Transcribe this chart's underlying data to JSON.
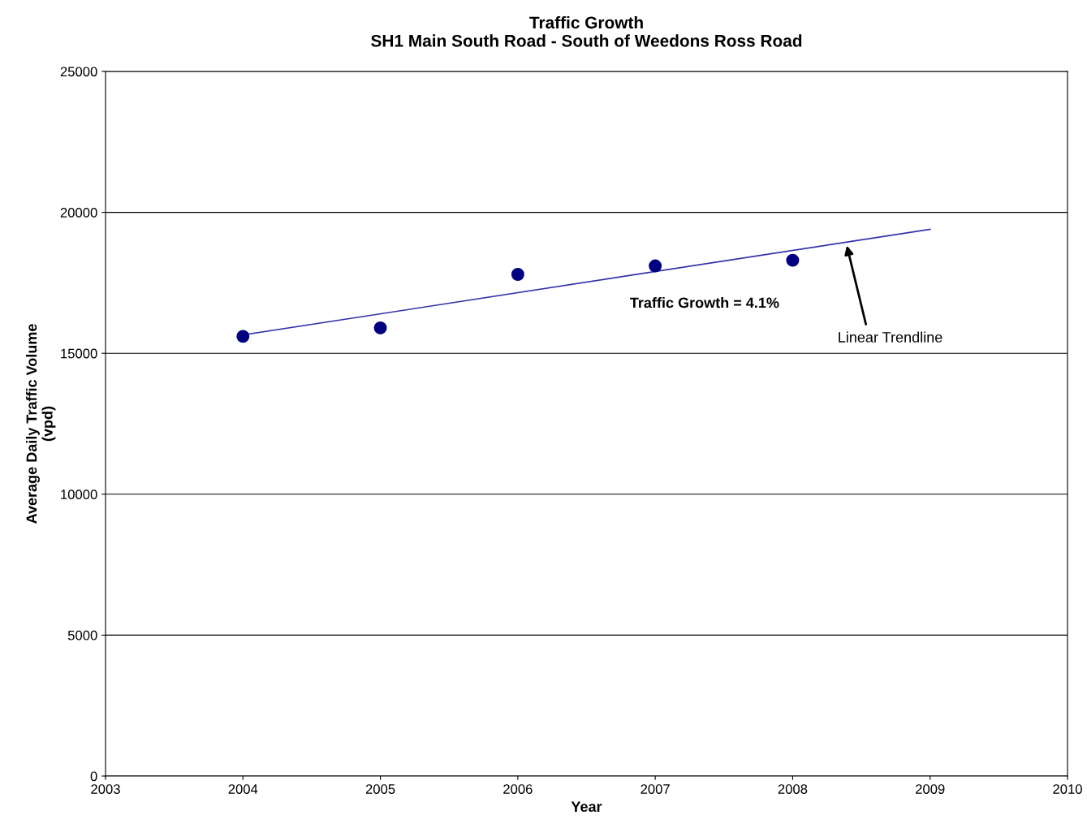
{
  "chart_data": {
    "type": "scatter",
    "title": "Traffic Growth\nSH1 Main South Road - South of Weedons Ross Road",
    "xlabel": "Year",
    "ylabel": "Average Daily Traffic Volume\n(vpd)",
    "x": [
      2004,
      2005,
      2006,
      2007,
      2008
    ],
    "series": [
      {
        "color": "#000080",
        "values": [
          15600,
          15900,
          17800,
          18100,
          18300
        ],
        "marker": "circle"
      },
      {
        "type": "line",
        "color": "#3333aa",
        "x": [
          2004,
          2009
        ],
        "values": [
          15650,
          19400
        ],
        "marker": "none",
        "line_style": "solid"
      }
    ],
    "xlim": [
      2003,
      2010
    ],
    "xticks": [
      2003,
      2004,
      2005,
      2006,
      2007,
      2008,
      2009,
      2010
    ],
    "ylim": [
      0,
      25000
    ],
    "yticks": [
      0,
      5000,
      10000,
      15000,
      20000,
      25000
    ],
    "grid": "y",
    "legend": false,
    "annotations": [
      "Traffic Growth = 4.1%",
      "Linear Trendline"
    ]
  }
}
